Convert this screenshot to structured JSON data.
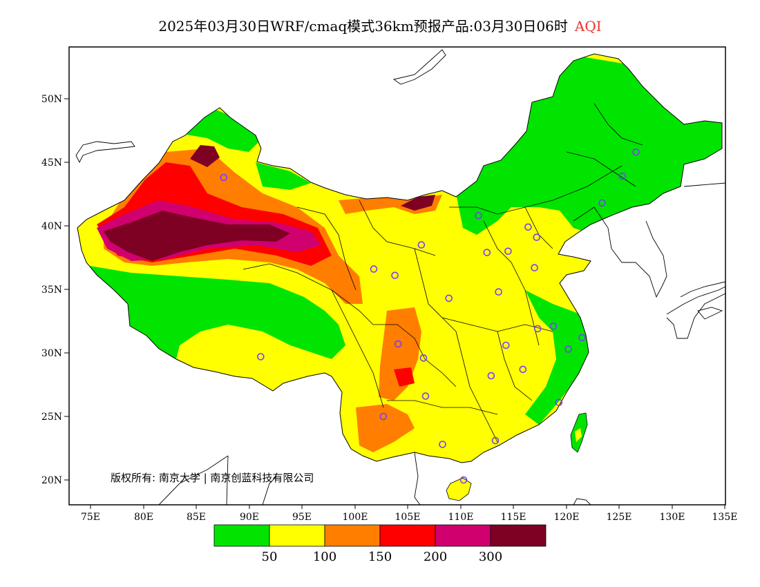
{
  "title": {
    "main": "2025年03月30日WRF/cmaq模式36km预报产品:03月30日06时",
    "variable": "AQI"
  },
  "lat_labels": [
    "50N",
    "45N",
    "40N",
    "35N",
    "30N",
    "25N",
    "20N"
  ],
  "lon_labels": [
    "75E",
    "80E",
    "85E",
    "90E",
    "95E",
    "100E",
    "105E",
    "110E",
    "115E",
    "120E",
    "125E",
    "130E",
    "135E"
  ],
  "copyright": "版权所有: 南京大学 | 南京创蓝科技有限公司",
  "colorbar": {
    "colors": [
      "#00e400",
      "#ffff00",
      "#ff7e00",
      "#ff0000",
      "#d0006f",
      "#7e0023"
    ],
    "labels": [
      "50",
      "100",
      "150",
      "200",
      "300"
    ]
  },
  "stations": [
    {
      "lon": 87.6,
      "lat": 43.8
    },
    {
      "lon": 91.1,
      "lat": 29.7
    },
    {
      "lon": 101.8,
      "lat": 36.6
    },
    {
      "lon": 103.8,
      "lat": 36.1
    },
    {
      "lon": 106.3,
      "lat": 38.5
    },
    {
      "lon": 111.7,
      "lat": 40.8
    },
    {
      "lon": 116.4,
      "lat": 39.9
    },
    {
      "lon": 117.2,
      "lat": 39.1
    },
    {
      "lon": 114.5,
      "lat": 38.0
    },
    {
      "lon": 112.5,
      "lat": 37.9
    },
    {
      "lon": 117.0,
      "lat": 36.7
    },
    {
      "lon": 113.6,
      "lat": 34.8
    },
    {
      "lon": 108.9,
      "lat": 34.3
    },
    {
      "lon": 104.1,
      "lat": 30.7
    },
    {
      "lon": 106.5,
      "lat": 29.6
    },
    {
      "lon": 106.7,
      "lat": 26.6
    },
    {
      "lon": 102.7,
      "lat": 25.0
    },
    {
      "lon": 108.3,
      "lat": 22.8
    },
    {
      "lon": 110.3,
      "lat": 20.0
    },
    {
      "lon": 113.3,
      "lat": 23.1
    },
    {
      "lon": 112.9,
      "lat": 28.2
    },
    {
      "lon": 114.3,
      "lat": 30.6
    },
    {
      "lon": 115.9,
      "lat": 28.7
    },
    {
      "lon": 117.3,
      "lat": 31.9
    },
    {
      "lon": 118.8,
      "lat": 32.1
    },
    {
      "lon": 120.2,
      "lat": 30.3
    },
    {
      "lon": 121.5,
      "lat": 31.2
    },
    {
      "lon": 119.3,
      "lat": 26.1
    },
    {
      "lon": 123.4,
      "lat": 41.8
    },
    {
      "lon": 125.3,
      "lat": 43.9
    },
    {
      "lon": 126.6,
      "lat": 45.8
    }
  ]
}
